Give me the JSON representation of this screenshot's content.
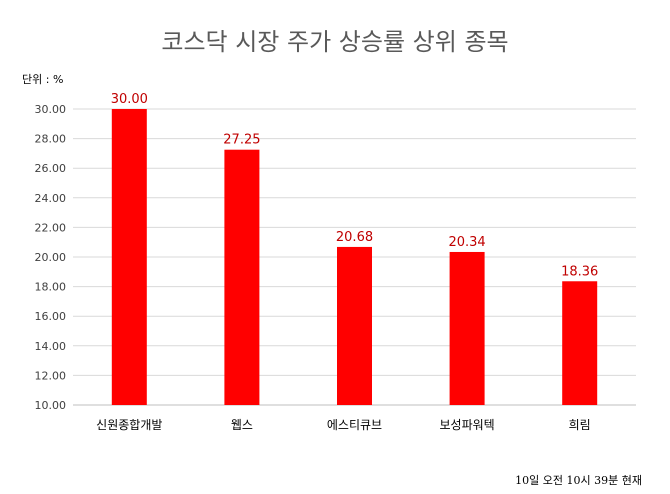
{
  "chart_data": {
    "type": "bar",
    "title": "코스닥 시장 주가 상승률 상위 종목",
    "unit_label": "단위 : %",
    "footnote": "10일  오전 10시 39분 현재",
    "categories": [
      "신원종합개발",
      "웹스",
      "에스티큐브",
      "보성파워텍",
      "희림"
    ],
    "values": [
      30.0,
      27.25,
      20.68,
      20.34,
      18.36
    ],
    "value_labels": [
      "30.00",
      "27.25",
      "20.68",
      "20.34",
      "18.36"
    ],
    "ylim": [
      10,
      30
    ],
    "yticks": [
      "10.00",
      "12.00",
      "14.00",
      "16.00",
      "18.00",
      "20.00",
      "22.00",
      "24.00",
      "26.00",
      "28.00",
      "30.00"
    ],
    "xlabel": "",
    "ylabel": "",
    "grid": true,
    "legend": "none",
    "colors": {
      "bar": "#ff0000",
      "value_label": "#c00000",
      "title": "#595959",
      "grid": "#d9d9d9",
      "axis": "#bfbfbf",
      "tick_text": "#404040"
    }
  }
}
